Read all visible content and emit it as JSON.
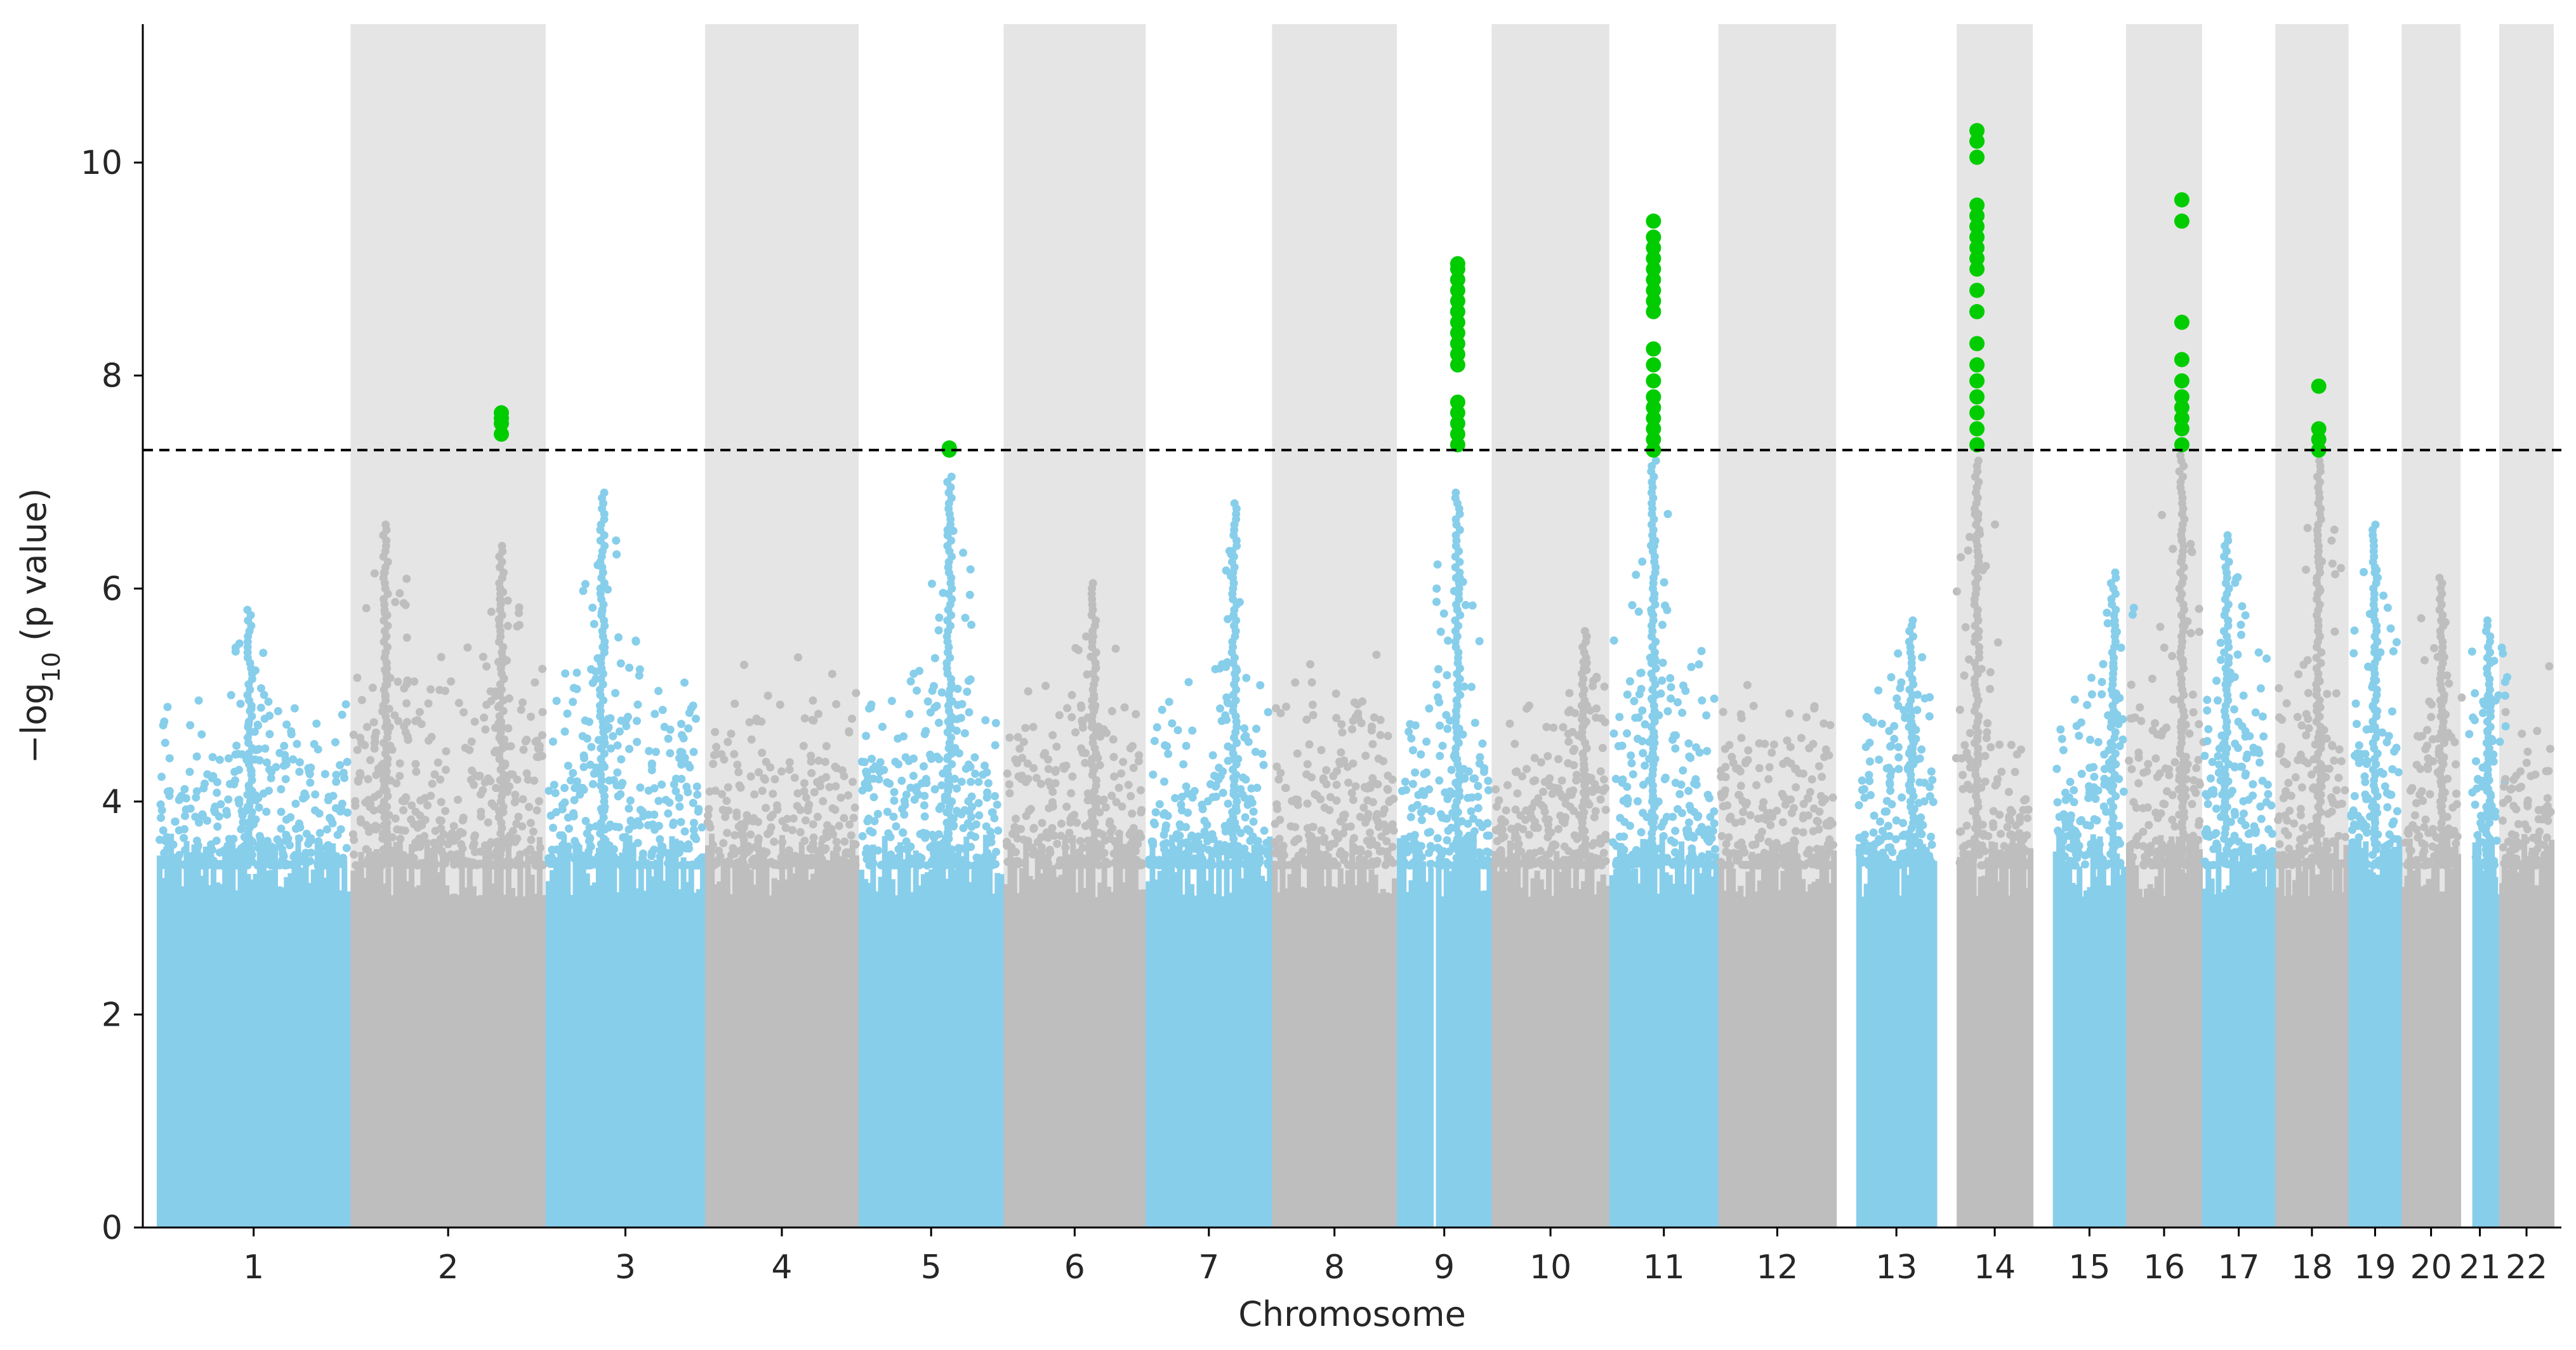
{
  "chart_data": {
    "type": "scatter",
    "subtype": "manhattan",
    "title": "",
    "xlabel": "Chromosome",
    "ylabel": "−log10 (p value)",
    "ylabel_parts": {
      "prefix": "−log",
      "subscript": "10",
      "suffix": " (p value)"
    },
    "ylim": [
      0,
      11.3
    ],
    "yticks": [
      0,
      2,
      4,
      6,
      8,
      10
    ],
    "significance_threshold": 7.3,
    "grid": false,
    "colors": {
      "odd_chromosome": "#87ceeb",
      "even_chromosome": "#bebebe",
      "significant": "#00cc00",
      "band": "#e5e5e5",
      "threshold_line": "#000000"
    },
    "chromosomes": [
      {
        "label": "1",
        "start": 0.0,
        "end": 0.135,
        "gaps": [
          [
            0.067,
            0.072
          ]
        ],
        "base_max": 4.2,
        "tail": 0.9,
        "peaks": [
          [
            0.48,
            5.8
          ]
        ],
        "sig": []
      },
      {
        "label": "2",
        "start": 0.135,
        "end": 0.271,
        "gaps": [],
        "base_max": 4.5,
        "tail": 1.2,
        "peaks": [
          [
            0.17,
            6.6
          ],
          [
            0.78,
            6.4
          ]
        ],
        "sig": [
          [
            0.78,
            [
              7.45,
              7.55,
              7.6,
              7.65
            ]
          ]
        ]
      },
      {
        "label": "3",
        "start": 0.271,
        "end": 0.382,
        "gaps": [],
        "base_max": 4.4,
        "tail": 1.3,
        "peaks": [
          [
            0.35,
            6.9
          ]
        ],
        "sig": []
      },
      {
        "label": "4",
        "start": 0.382,
        "end": 0.489,
        "gaps": [],
        "base_max": 4.3,
        "tail": 1.2,
        "peaks": [],
        "sig": []
      },
      {
        "label": "5",
        "start": 0.489,
        "end": 0.59,
        "gaps": [],
        "base_max": 4.3,
        "tail": 1.2,
        "peaks": [
          [
            0.63,
            7.05
          ]
        ],
        "sig": [
          [
            0.63,
            [
              7.3,
              7.32
            ]
          ]
        ]
      },
      {
        "label": "6",
        "start": 0.59,
        "end": 0.689,
        "gaps": [],
        "base_max": 4.2,
        "tail": 1.0,
        "peaks": [
          [
            0.64,
            6.05
          ]
        ],
        "sig": []
      },
      {
        "label": "7",
        "start": 0.689,
        "end": 0.777,
        "gaps": [],
        "base_max": 4.2,
        "tail": 1.1,
        "peaks": [
          [
            0.71,
            6.8
          ]
        ],
        "sig": []
      },
      {
        "label": "8",
        "start": 0.777,
        "end": 0.864,
        "gaps": [],
        "base_max": 4.4,
        "tail": 1.0,
        "peaks": [],
        "sig": []
      },
      {
        "label": "9",
        "start": 0.864,
        "end": 0.93,
        "gaps": [
          [
            0.36,
            0.42
          ]
        ],
        "base_max": 4.2,
        "tail": 1.0,
        "peaks": [
          [
            0.65,
            6.9
          ]
        ],
        "sig": [
          [
            0.65,
            [
              7.35,
              7.45,
              7.55,
              7.65,
              7.75,
              8.1,
              8.2,
              8.3,
              8.4,
              8.5,
              8.6,
              8.7,
              8.8,
              8.9,
              9.0,
              9.05
            ]
          ]
        ]
      },
      {
        "label": "10",
        "start": 0.93,
        "end": 1.012,
        "gaps": [],
        "base_max": 4.1,
        "tail": 1.0,
        "peaks": [
          [
            0.8,
            5.6
          ]
        ],
        "sig": []
      },
      {
        "label": "11",
        "start": 1.012,
        "end": 1.088,
        "gaps": [],
        "base_max": 4.5,
        "tail": 1.5,
        "peaks": [
          [
            0.4,
            7.2
          ]
        ],
        "sig": [
          [
            0.4,
            [
              7.3,
              7.4,
              7.5,
              7.6,
              7.7,
              7.8,
              7.95,
              8.1,
              8.25,
              8.6,
              8.7,
              8.8,
              8.9,
              9.0,
              9.1,
              9.2,
              9.3,
              9.45
            ]
          ]
        ]
      },
      {
        "label": "12",
        "start": 1.088,
        "end": 1.17,
        "gaps": [],
        "base_max": 4.3,
        "tail": 1.0,
        "peaks": [],
        "sig": []
      },
      {
        "label": "13",
        "start": 1.184,
        "end": 1.24,
        "gaps": [],
        "base_max": 4.3,
        "tail": 1.0,
        "peaks": [
          [
            0.7,
            5.7
          ]
        ],
        "sig": []
      },
      {
        "label": "14",
        "start": 1.254,
        "end": 1.307,
        "gaps": [],
        "base_max": 4.0,
        "tail": 1.2,
        "peaks": [
          [
            0.25,
            7.2
          ]
        ],
        "sig": [
          [
            0.25,
            [
              7.35,
              7.5,
              7.65,
              7.8,
              7.95,
              8.1,
              8.3,
              8.6,
              8.8,
              9.0,
              9.1,
              9.2,
              9.3,
              9.4,
              9.5,
              9.6,
              10.05,
              10.2,
              10.3
            ]
          ]
        ]
      },
      {
        "label": "15",
        "start": 1.321,
        "end": 1.372,
        "gaps": [],
        "base_max": 4.2,
        "tail": 1.0,
        "peaks": [
          [
            0.85,
            6.15
          ]
        ],
        "sig": []
      },
      {
        "label": "16",
        "start": 1.372,
        "end": 1.425,
        "gaps": [],
        "base_max": 4.3,
        "tail": 1.3,
        "peaks": [
          [
            0.75,
            7.25
          ]
        ],
        "sig": [
          [
            0.75,
            [
              7.35,
              7.5,
              7.6,
              7.7,
              7.8,
              7.95,
              8.15,
              8.5,
              9.45,
              9.65
            ]
          ]
        ]
      },
      {
        "label": "17",
        "start": 1.425,
        "end": 1.476,
        "gaps": [],
        "base_max": 4.4,
        "tail": 1.2,
        "peaks": [
          [
            0.32,
            6.5
          ]
        ],
        "sig": []
      },
      {
        "label": "18",
        "start": 1.476,
        "end": 1.527,
        "gaps": [],
        "base_max": 4.4,
        "tail": 1.0,
        "peaks": [
          [
            0.6,
            7.2
          ]
        ],
        "sig": [
          [
            0.6,
            [
              7.3,
              7.4,
              7.5,
              7.9
            ]
          ]
        ]
      },
      {
        "label": "19",
        "start": 1.527,
        "end": 1.564,
        "gaps": [],
        "base_max": 4.0,
        "tail": 1.0,
        "peaks": [
          [
            0.5,
            6.6
          ]
        ],
        "sig": []
      },
      {
        "label": "20",
        "start": 1.564,
        "end": 1.605,
        "gaps": [],
        "base_max": 4.3,
        "tail": 1.1,
        "peaks": [
          [
            0.7,
            6.1
          ]
        ],
        "sig": []
      },
      {
        "label": "21",
        "start": 1.605,
        "end": 1.632,
        "gaps": [
          [
            0.0,
            0.32
          ]
        ],
        "base_max": 4.2,
        "tail": 1.0,
        "peaks": [
          [
            0.75,
            5.7
          ]
        ],
        "sig": []
      },
      {
        "label": "22",
        "start": 1.632,
        "end": 1.67,
        "gaps": [],
        "base_max": 4.3,
        "tail": 1.0,
        "peaks": [],
        "sig": []
      }
    ]
  }
}
